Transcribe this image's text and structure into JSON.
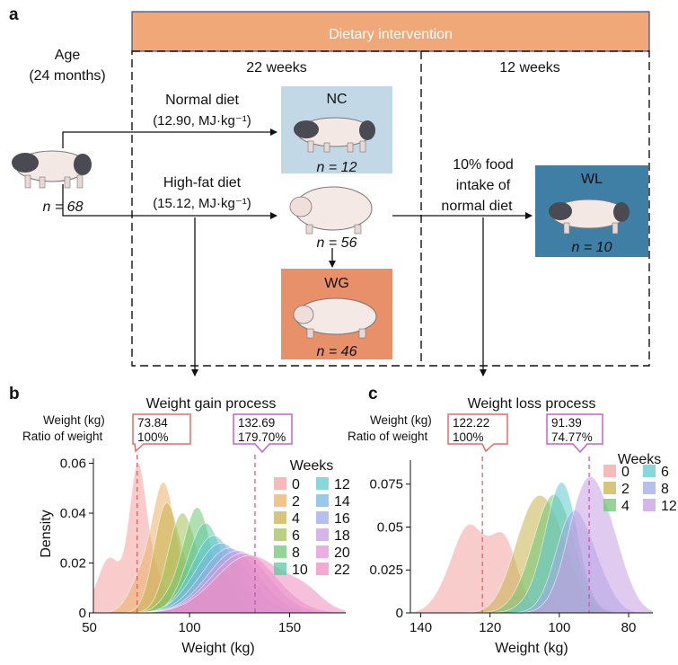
{
  "panel_a": {
    "letter": "a",
    "banner": "Dietary intervention",
    "period1": "22 weeks",
    "period2": "12 weeks",
    "age_label": "Age",
    "age_value": "(24 months)",
    "start_n": "n = 68",
    "normal_diet": "Normal diet",
    "normal_energy": "(12.90, MJ·kg⁻¹)",
    "highfat_diet": "High-fat diet",
    "highfat_energy": "(15.12, MJ·kg⁻¹)",
    "nc_label": "NC",
    "nc_n": "n = 12",
    "hf_n": "n = 56",
    "wg_label": "WG",
    "wg_n": "n = 46",
    "restrict_line1": "10% food",
    "restrict_line2": "intake of",
    "restrict_line3": "normal diet",
    "wl_label": "WL",
    "wl_n": "n = 10",
    "colors": {
      "banner": "#f0a878",
      "nc": "#c3d8e6",
      "wg": "#e8906a",
      "wl": "#3f7ea5"
    }
  },
  "panel_b": {
    "letter": "b",
    "row_weight": "Weight (kg)",
    "row_ratio": "Ratio of weight",
    "box1_weight": "73.84",
    "box1_ratio": "100%",
    "box2_weight": "132.69",
    "box2_ratio": "179.70%"
  },
  "panel_c": {
    "letter": "c",
    "row_weight": "Weight (kg)",
    "row_ratio": "Ratio of weight",
    "box1_weight": "122.22",
    "box1_ratio": "100%",
    "box2_weight": "91.39",
    "box2_ratio": "74.77%"
  },
  "chart_data": [
    {
      "type": "area",
      "title": "Weight gain process",
      "xlabel": "Weight (kg)",
      "ylabel": "Density",
      "xlim": [
        52,
        178
      ],
      "ylim": [
        0,
        0.062
      ],
      "xticks": [
        50,
        100,
        150
      ],
      "yticks": [
        0,
        0.02,
        0.04,
        0.06
      ],
      "ytick_labels": [
        "0",
        "0.02",
        "0.04",
        "0.06"
      ],
      "legend_title": "Weeks",
      "reference_lines": [
        73.84,
        132.69
      ],
      "series": [
        {
          "name": "0",
          "color": "#f4a3a3",
          "peaks": [
            [
              74,
              0.052,
              4.2
            ],
            [
              60,
              0.022,
              6
            ],
            [
              82,
              0.016,
              6
            ]
          ]
        },
        {
          "name": "2",
          "color": "#e9b067",
          "peaks": [
            [
              87,
              0.046,
              5.5
            ],
            [
              76,
              0.014,
              6
            ],
            [
              98,
              0.01,
              8
            ]
          ]
        },
        {
          "name": "4",
          "color": "#c9b24f",
          "peaks": [
            [
              88,
              0.04,
              6
            ],
            [
              100,
              0.012,
              8
            ]
          ]
        },
        {
          "name": "6",
          "color": "#a2c15a",
          "peaks": [
            [
              96,
              0.038,
              7
            ],
            [
              108,
              0.006,
              8
            ]
          ]
        },
        {
          "name": "8",
          "color": "#6fc772",
          "peaks": [
            [
              104,
              0.042,
              7
            ],
            [
              90,
              0.005,
              6
            ]
          ]
        },
        {
          "name": "10",
          "color": "#5cc8a4",
          "peaks": [
            [
              108,
              0.036,
              9
            ]
          ]
        },
        {
          "name": "12",
          "color": "#5fc9cf",
          "peaks": [
            [
              112,
              0.031,
              11
            ]
          ]
        },
        {
          "name": "14",
          "color": "#78b5e3",
          "peaks": [
            [
              116,
              0.028,
              13
            ]
          ]
        },
        {
          "name": "16",
          "color": "#9fa9e5",
          "peaks": [
            [
              120,
              0.026,
              14
            ]
          ]
        },
        {
          "name": "18",
          "color": "#c79ee2",
          "peaks": [
            [
              124,
              0.025,
              15
            ]
          ]
        },
        {
          "name": "20",
          "color": "#e393d6",
          "peaks": [
            [
              127,
              0.024,
              16
            ]
          ]
        },
        {
          "name": "22",
          "color": "#ef8cc0",
          "peaks": [
            [
              130,
              0.023,
              17
            ],
            [
              158,
              0.006,
              9
            ]
          ]
        }
      ]
    },
    {
      "type": "area",
      "title": "Weight loss process",
      "xlabel": "Weight (kg)",
      "ylabel": "",
      "xlim": [
        143,
        73
      ],
      "ylim": [
        0,
        0.089
      ],
      "xticks": [
        140,
        120,
        100,
        80
      ],
      "yticks": [
        0,
        0.025,
        0.05,
        0.075
      ],
      "ytick_labels": [
        "0",
        "0.025",
        "0.05",
        "0.075"
      ],
      "legend_title": "Weeks",
      "reference_lines": [
        122.22,
        91.39
      ],
      "series": [
        {
          "name": "0",
          "color": "#f4a3a3",
          "peaks": [
            [
              126,
              0.048,
              4.5
            ],
            [
              116,
              0.042,
              4
            ],
            [
              133,
              0.008,
              4
            ]
          ]
        },
        {
          "name": "2",
          "color": "#c9b24f",
          "peaks": [
            [
              104,
              0.058,
              6.5
            ],
            [
              110,
              0.018,
              5
            ]
          ]
        },
        {
          "name": "4",
          "color": "#6fc772",
          "peaks": [
            [
              101,
              0.065,
              5.5
            ],
            [
              108,
              0.01,
              5
            ]
          ]
        },
        {
          "name": "6",
          "color": "#5fc9cf",
          "peaks": [
            [
              99,
              0.071,
              4.5
            ],
            [
              105,
              0.01,
              5
            ]
          ]
        },
        {
          "name": "8",
          "color": "#9fa9e5",
          "peaks": [
            [
              96,
              0.058,
              5
            ],
            [
              88,
              0.012,
              4
            ]
          ]
        },
        {
          "name": "12",
          "color": "#c79ee2",
          "peaks": [
            [
              92,
              0.074,
              5.5
            ],
            [
              84,
              0.022,
              4.5
            ]
          ]
        }
      ]
    }
  ]
}
